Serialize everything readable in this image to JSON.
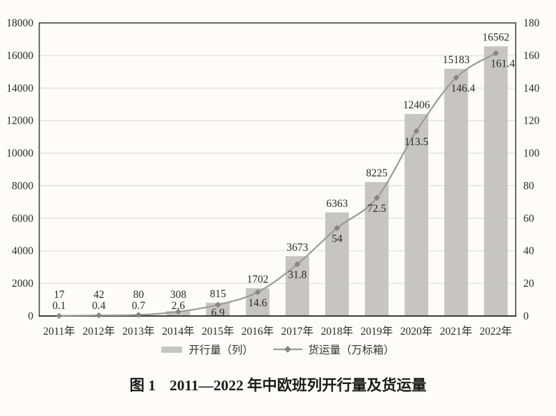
{
  "figure": {
    "label": "图 1",
    "title": "2011—2022 年中欧班列开行量及货运量"
  },
  "chart_data": {
    "type": "bar",
    "subtype": "bar+line combo, dual axis",
    "categories": [
      "2011年",
      "2012年",
      "2013年",
      "2014年",
      "2015年",
      "2016年",
      "2017年",
      "2018年",
      "2019年",
      "2020年",
      "2021年",
      "2022年"
    ],
    "series": [
      {
        "name": "开行量（列）",
        "type": "bar",
        "axis": "left",
        "values": [
          17,
          42,
          80,
          308,
          815,
          1702,
          3673,
          6363,
          8225,
          12406,
          15183,
          16562
        ],
        "color": "#c6c5c3"
      },
      {
        "name": "货运量（万标箱）",
        "type": "line",
        "axis": "right",
        "values": [
          0.1,
          0.4,
          0.7,
          2.6,
          6.9,
          14.6,
          31.8,
          54,
          72.5,
          113.5,
          146.4,
          161.4
        ],
        "color": "#9b9a97",
        "marker": "diamond",
        "marker_color": "#868583"
      }
    ],
    "left_axis": {
      "min": 0,
      "max": 18000,
      "step": 2000,
      "ticks": [
        0,
        2000,
        4000,
        6000,
        8000,
        10000,
        12000,
        14000,
        16000,
        18000
      ]
    },
    "right_axis": {
      "min": 0,
      "max": 180,
      "step": 20,
      "ticks": [
        0,
        20,
        40,
        60,
        80,
        100,
        120,
        140,
        160,
        180
      ]
    },
    "grid": true,
    "data_labels": true,
    "legend_position": "bottom"
  },
  "colors": {
    "background": "#fdfcfa",
    "text": "#2b2a28",
    "grid": "#dcdbd8",
    "frame": "#45443f",
    "bar": "#c6c5c3",
    "line": "#9b9a97",
    "marker": "#868583"
  }
}
